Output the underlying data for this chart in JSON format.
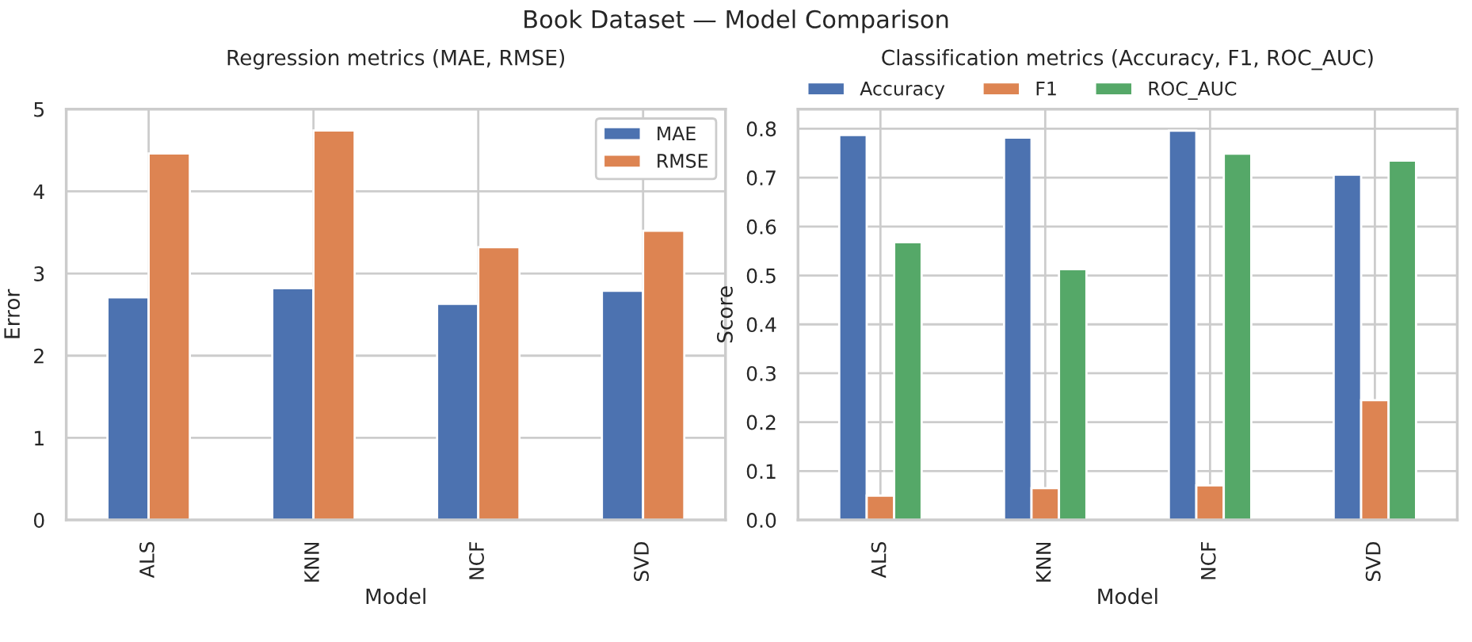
{
  "chart_data": [
    {
      "type": "bar",
      "annotations": [
        "Book Dataset — Model Comparison"
      ],
      "title": "Regression metrics (MAE, RMSE)",
      "xlabel": "Model",
      "ylabel": "Error",
      "categories": [
        "ALS",
        "KNN",
        "NCF",
        "SVD"
      ],
      "series": [
        {
          "name": "MAE",
          "color": "#4c72b0",
          "values": [
            2.71,
            2.82,
            2.63,
            2.79
          ]
        },
        {
          "name": "RMSE",
          "color": "#dd8452",
          "values": [
            4.46,
            4.74,
            3.32,
            3.52
          ]
        }
      ],
      "ylim": [
        0,
        5
      ],
      "yticks": [
        0,
        1,
        2,
        3,
        4,
        5
      ],
      "grid": true,
      "legend": "top right"
    },
    {
      "type": "bar",
      "title": "Classification metrics (Accuracy, F1, ROC_AUC)",
      "xlabel": "Model",
      "ylabel": "Score",
      "categories": [
        "ALS",
        "KNN",
        "NCF",
        "SVD"
      ],
      "series": [
        {
          "name": "Accuracy",
          "color": "#4c72b0",
          "values": [
            0.787,
            0.782,
            0.796,
            0.706
          ]
        },
        {
          "name": "F1",
          "color": "#dd8452",
          "values": [
            0.05,
            0.065,
            0.071,
            0.245
          ]
        },
        {
          "name": "ROC_AUC",
          "color": "#55a868",
          "values": [
            0.568,
            0.513,
            0.749,
            0.735
          ]
        }
      ],
      "ylim": [
        0,
        0.84
      ],
      "yticks": [
        {
          "value": 0,
          "label": "0.0"
        },
        0.1,
        0.2,
        0.3,
        0.4,
        0.5,
        0.6,
        0.7,
        0.8
      ],
      "grid": true,
      "legend": "top left"
    }
  ]
}
